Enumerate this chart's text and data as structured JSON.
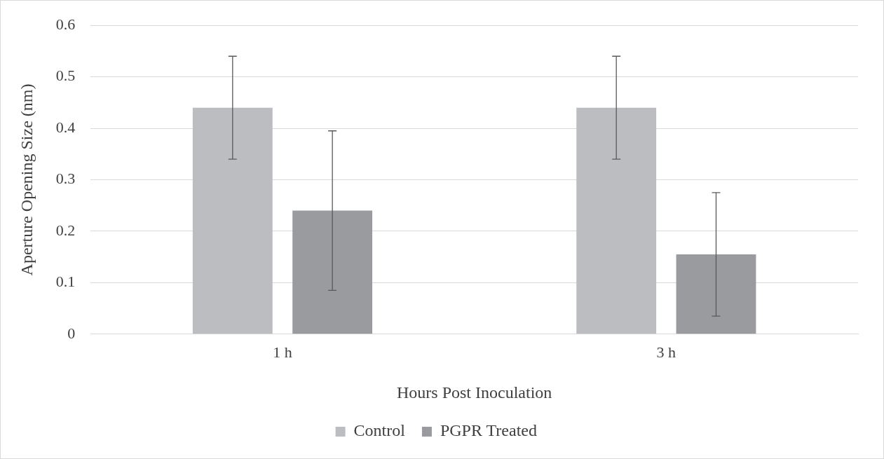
{
  "chart_data": {
    "type": "bar",
    "xlabel": "Hours Post Inoculation",
    "ylabel": "Aperture Opening Size (nm)",
    "categories": [
      "1 h",
      "3 h"
    ],
    "series": [
      {
        "name": "Control",
        "color": "#bcbdc0",
        "values": [
          0.44,
          0.44
        ],
        "errors": [
          0.1,
          0.1
        ]
      },
      {
        "name": "PGPR Treated",
        "color": "#999b9e",
        "values": [
          0.24,
          0.155
        ],
        "errors": [
          0.155,
          0.12
        ]
      }
    ],
    "ylim": [
      0,
      0.6
    ],
    "yticks": [
      0,
      0.1,
      0.2,
      0.3,
      0.4,
      0.5,
      0.6
    ],
    "grid": "y",
    "legend": "bottom"
  }
}
